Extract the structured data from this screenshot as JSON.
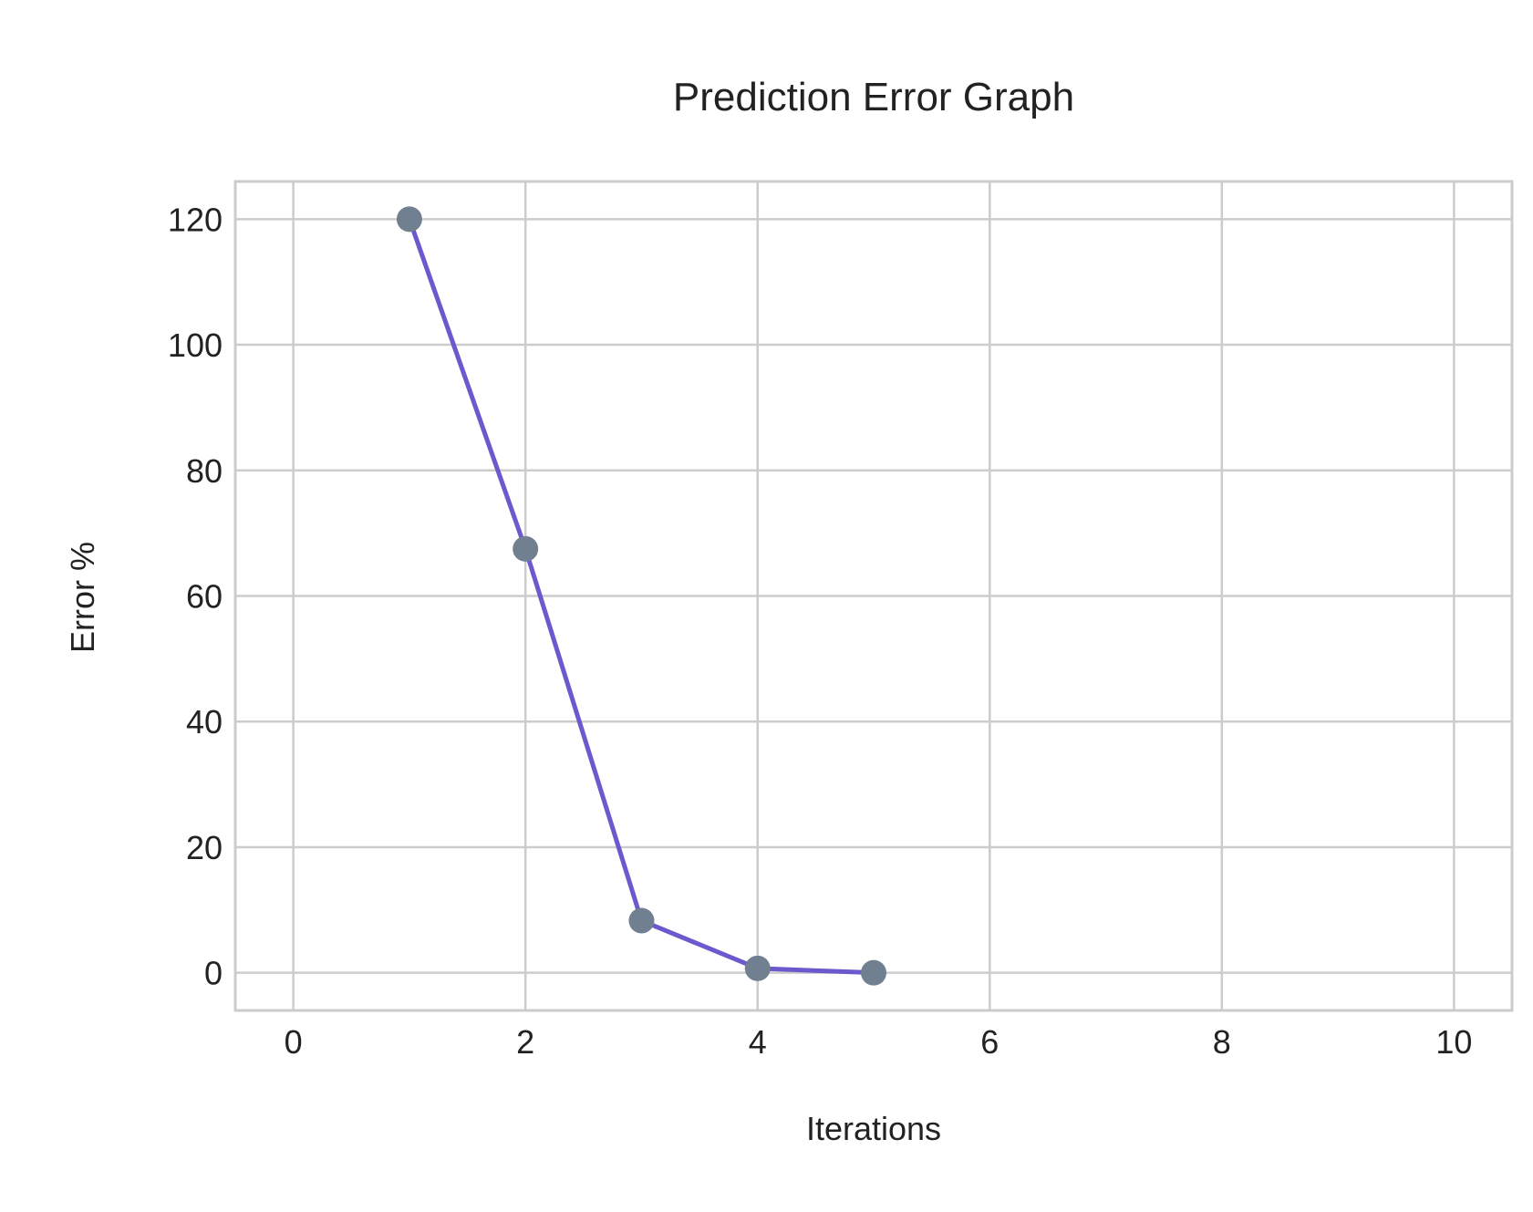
{
  "chart_data": {
    "type": "line",
    "title": "Prediction Error Graph",
    "xlabel": "Iterations",
    "ylabel": "Error %",
    "xlim": [
      -0.5,
      10.5
    ],
    "ylim": [
      -6,
      126
    ],
    "xticks": [
      0,
      2,
      4,
      6,
      8,
      10
    ],
    "yticks": [
      0,
      20,
      40,
      60,
      80,
      100,
      120
    ],
    "grid": true,
    "series": [
      {
        "x": [
          1,
          2,
          3,
          4,
          5
        ],
        "y": [
          120,
          67.5,
          8.3,
          0.7,
          0
        ],
        "line_color": "#6a5acd",
        "marker_color": "#708090"
      }
    ],
    "colors": {
      "grid": "#cccccc",
      "spine": "#cccccc",
      "text": "#222222"
    }
  }
}
